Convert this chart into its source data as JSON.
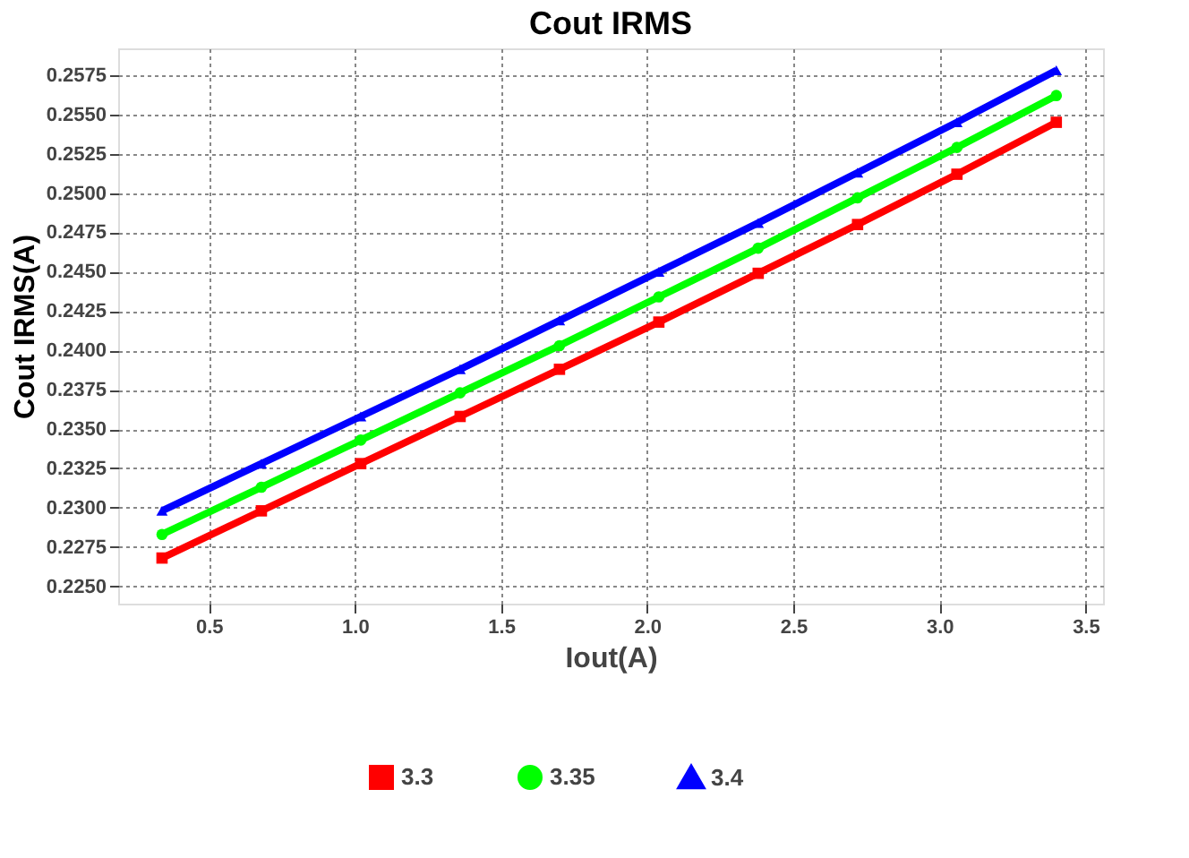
{
  "chart_data": {
    "type": "line",
    "title": "Cout IRMS",
    "xlabel": "Iout(A)",
    "ylabel": "Cout IRMS(A)",
    "x": [
      0.34,
      0.68,
      1.02,
      1.36,
      1.7,
      2.04,
      2.38,
      2.72,
      3.06,
      3.4
    ],
    "series": [
      {
        "name": "3.3",
        "color": "#ff0000",
        "marker": "square",
        "values": [
          0.2268,
          0.2298,
          0.2328,
          0.2358,
          0.2388,
          0.2418,
          0.2449,
          0.248,
          0.2512,
          0.2545
        ]
      },
      {
        "name": "3.35",
        "color": "#00ff00",
        "marker": "circle",
        "values": [
          0.2283,
          0.2313,
          0.2343,
          0.2373,
          0.2403,
          0.2434,
          0.2465,
          0.2497,
          0.2529,
          0.2562
        ]
      },
      {
        "name": "3.4",
        "color": "#0000ff",
        "marker": "triangle",
        "values": [
          0.2298,
          0.2328,
          0.2358,
          0.2388,
          0.2419,
          0.245,
          0.2481,
          0.2513,
          0.2545,
          0.2578
        ]
      }
    ],
    "xlim": [
      0.19,
      3.56
    ],
    "xticks": [
      {
        "value": 0.5,
        "label": "0.5"
      },
      {
        "value": 1.0,
        "label": "1.0"
      },
      {
        "value": 1.5,
        "label": "1.5"
      },
      {
        "value": 2.0,
        "label": "2.0"
      },
      {
        "value": 2.5,
        "label": "2.5"
      },
      {
        "value": 3.0,
        "label": "3.0"
      },
      {
        "value": 3.5,
        "label": "3.5"
      }
    ],
    "ylim": [
      0.2239,
      0.2592
    ],
    "yticks": [
      {
        "value": 0.225,
        "label": "0.2250"
      },
      {
        "value": 0.2275,
        "label": "0.2275"
      },
      {
        "value": 0.23,
        "label": "0.2300"
      },
      {
        "value": 0.2325,
        "label": "0.2325"
      },
      {
        "value": 0.235,
        "label": "0.2350"
      },
      {
        "value": 0.2375,
        "label": "0.2375"
      },
      {
        "value": 0.24,
        "label": "0.2400"
      },
      {
        "value": 0.2425,
        "label": "0.2425"
      },
      {
        "value": 0.245,
        "label": "0.2450"
      },
      {
        "value": 0.2475,
        "label": "0.2475"
      },
      {
        "value": 0.25,
        "label": "0.2500"
      },
      {
        "value": 0.2525,
        "label": "0.2525"
      },
      {
        "value": 0.255,
        "label": "0.2550"
      },
      {
        "value": 0.2575,
        "label": "0.2575"
      }
    ],
    "grid": true,
    "line_style": "solid",
    "legend": "bottom"
  }
}
